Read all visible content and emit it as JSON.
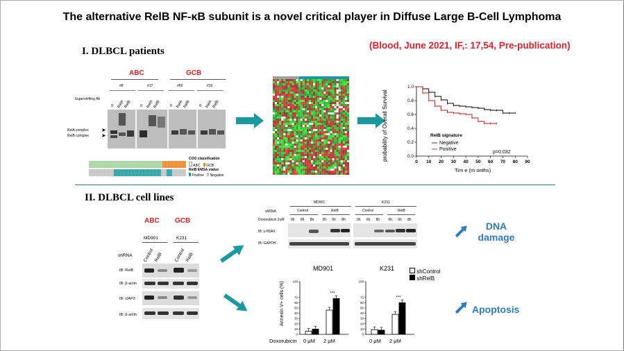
{
  "title": "The alternative RelB NF-κB subunit is a novel critical player in Diffuse Large B-Cell Lymphoma",
  "citation": "(Blood, June 2021, IF,: 17,54, Pre-publication)",
  "section1": {
    "heading": "I. DLBCL patients",
    "emsa": {
      "group_abc": "ABC",
      "group_gcb": "GCB",
      "supershifting_label": "Supershifting Ab",
      "samples": [
        "#8",
        "#17",
        "#66",
        "#15"
      ],
      "lane_labels": [
        "0",
        "RelA",
        "RelB"
      ],
      "complex_rela": "RelA complex",
      "complex_relb": "RelB complex"
    },
    "legend": {
      "coo_title": "COO classification",
      "abc": "ABC",
      "gcb": "GCB",
      "emsa_title": "RelB EMSA status",
      "positive": "Positive",
      "negative": "Negative",
      "colors": {
        "abc": "#e8e8e8",
        "gcb": "#f08020",
        "positive": "#1a9aa0",
        "negative": "#c0c0c0"
      }
    },
    "survival": {
      "ylabel": "probability of Overall Survival",
      "xlabel": "Tim e (m onths)",
      "legend_title": "RelB signature",
      "negative": "Negative",
      "positive": "Positive",
      "pvalue": "p=0.032",
      "yticks": [
        "0.0",
        "0.2",
        "0.4",
        "0.6",
        "0.8",
        "1.0"
      ],
      "xticks": [
        "0",
        "10",
        "20",
        "30",
        "40",
        "50",
        "60",
        "70",
        "80",
        "90"
      ]
    }
  },
  "section2": {
    "heading": "II. DLBCL cell lines",
    "wb_left": {
      "abc": "ABC",
      "gcb": "GCB",
      "lines": [
        "MD901",
        "K231"
      ],
      "shrna": "shRNA",
      "lanes": [
        "Control",
        "RelB",
        "Control",
        "RelB"
      ],
      "rows": [
        "IB: RelB",
        "IB: β-actin",
        "IB: cIAP2",
        "IB: β-actin"
      ]
    },
    "wb_right": {
      "lines": [
        "MD901",
        "K231"
      ],
      "shrna": "shRNA",
      "control": "Control",
      "relb": "RelB",
      "doxo": "Doxorubicin 2uM",
      "times": [
        "0h",
        "6h",
        "8h",
        "0h",
        "6h",
        "8h"
      ],
      "rows": [
        "IB: γ-H2AX",
        "IB: GAPDH"
      ]
    },
    "dna_damage": "DNA damage",
    "apoptosis": "Apoptosis",
    "bar_chart": {
      "titles": [
        "MD901",
        "K231"
      ],
      "ylabel": "Annexin V+ cells (%)",
      "xlabel_prefix": "Doxorubicin",
      "categories": [
        "0 μM",
        "2 μM"
      ],
      "legend": [
        "shControl",
        "shRelB"
      ],
      "sig": "***",
      "yticks": [
        "0",
        "10",
        "20",
        "30",
        "40",
        "50",
        "60",
        "70",
        "100"
      ]
    }
  },
  "chart_data": [
    {
      "type": "line",
      "title": "",
      "xlabel": "Tim e (m onths)",
      "ylabel": "probability of Overall Survival",
      "xlim": [
        0,
        90
      ],
      "ylim": [
        0,
        1
      ],
      "series": [
        {
          "name": "Negative",
          "x": [
            0,
            5,
            10,
            15,
            20,
            25,
            30,
            35,
            40,
            45,
            50,
            55,
            60,
            65,
            70,
            75,
            80
          ],
          "y": [
            1.0,
            0.97,
            0.92,
            0.86,
            0.81,
            0.76,
            0.73,
            0.72,
            0.71,
            0.7,
            0.69,
            0.67,
            0.66,
            0.66,
            0.62,
            0.62,
            0.62
          ]
        },
        {
          "name": "Positive",
          "x": [
            0,
            5,
            10,
            15,
            20,
            25,
            30,
            35,
            40,
            45,
            50,
            55,
            60,
            65
          ],
          "y": [
            1.0,
            0.91,
            0.8,
            0.72,
            0.66,
            0.63,
            0.62,
            0.61,
            0.6,
            0.55,
            0.5,
            0.47,
            0.47,
            0.47
          ]
        }
      ]
    },
    {
      "type": "bar",
      "title": "MD901",
      "categories": [
        "0 μM",
        "2 μM"
      ],
      "series": [
        {
          "name": "shControl",
          "values": [
            6,
            46
          ]
        },
        {
          "name": "shRelB",
          "values": [
            10,
            68
          ]
        }
      ],
      "ylabel": "Annexin V+ cells (%)",
      "ylim": [
        0,
        100
      ]
    },
    {
      "type": "bar",
      "title": "K231",
      "categories": [
        "0 μM",
        "2 μM"
      ],
      "series": [
        {
          "name": "shControl",
          "values": [
            9,
            38
          ]
        },
        {
          "name": "shRelB",
          "values": [
            8,
            60
          ]
        }
      ],
      "ylabel": "Annexin V+ cells (%)",
      "ylim": [
        0,
        100
      ]
    }
  ]
}
